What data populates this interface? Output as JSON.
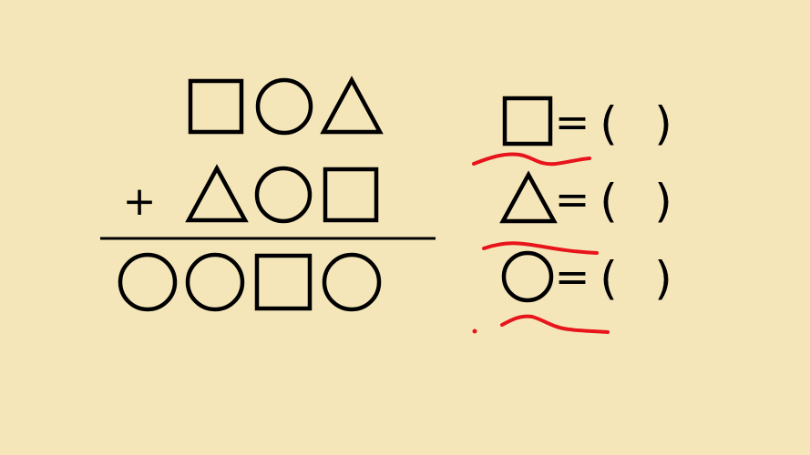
{
  "puzzle": {
    "addend_top": [
      "square",
      "circle",
      "triangle"
    ],
    "addend_bottom": [
      "triangle",
      "circle",
      "square"
    ],
    "operator": "+",
    "sum": [
      "circle",
      "circle",
      "square",
      "circle"
    ]
  },
  "answers": [
    {
      "shape": "square",
      "equals": "=",
      "paren_open": "(",
      "paren_close": ")"
    },
    {
      "shape": "triangle",
      "equals": "=",
      "paren_open": "(",
      "paren_close": ")"
    },
    {
      "shape": "circle",
      "equals": "=",
      "paren_open": "(",
      "paren_close": ")"
    }
  ],
  "colors": {
    "background": "#f5e6b9",
    "ink": "#000000",
    "annotation": "#e8141c"
  }
}
